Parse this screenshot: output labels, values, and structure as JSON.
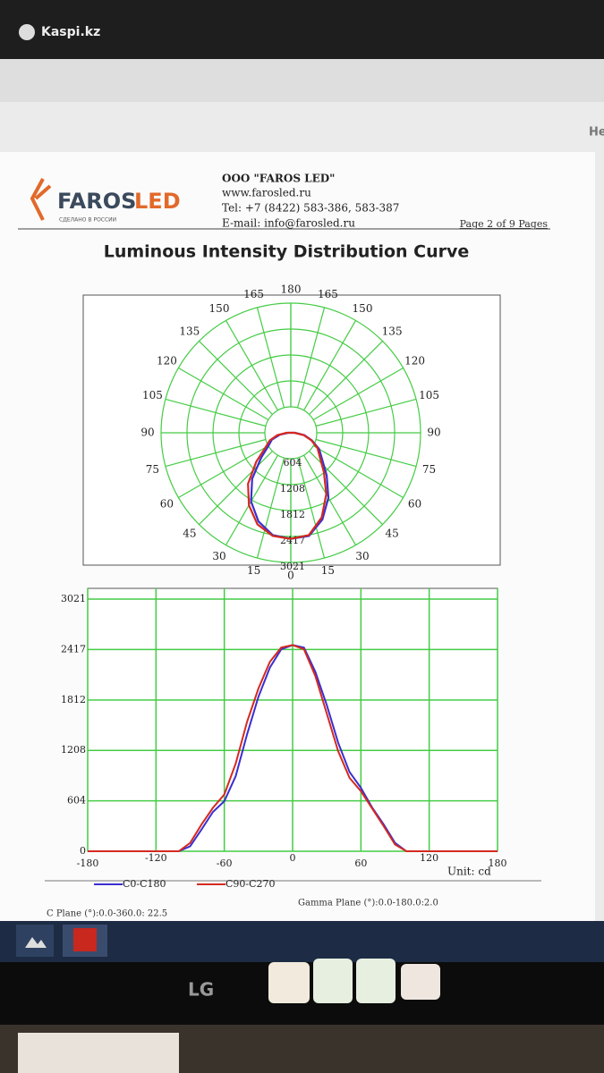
{
  "watermark": "Kaspi.kz",
  "side_text": "He",
  "header": {
    "logo_main": "FAROS",
    "logo_accent": "LED",
    "made_in": "СДЕЛАНО В РОССИИ",
    "company": "OOO \"FAROS LED\"",
    "web": "www.farosled.ru",
    "tel": "Tel: +7 (8422) 583-386, 583-387",
    "email": "E-mail: info@farosled.ru",
    "page": "Page 2 of 9 Pages"
  },
  "title": "Luminous Intensity Distribution Curve",
  "chart_data": [
    {
      "type": "polar",
      "x": [
        -180,
        -170,
        -160,
        -150,
        -140,
        -130,
        -120,
        -110,
        -100,
        -90,
        -80,
        -70,
        -60,
        -50,
        -40,
        -30,
        -20,
        -10,
        0,
        10,
        20,
        30,
        40,
        50,
        60,
        70,
        80,
        90,
        100,
        110,
        120,
        130,
        140,
        150,
        160,
        170,
        180
      ],
      "series": [
        {
          "name": "C0-C180",
          "color": "#3a2fd0",
          "values": [
            0,
            0,
            0,
            0,
            0,
            0,
            0,
            0,
            0,
            60,
            260,
            470,
            600,
            900,
            1400,
            1850,
            2200,
            2420,
            2470,
            2440,
            2150,
            1750,
            1300,
            950,
            760,
            520,
            320,
            100,
            0,
            0,
            0,
            0,
            0,
            0,
            0,
            0,
            0
          ]
        },
        {
          "name": "C90-C270",
          "color": "#d42a20",
          "values": [
            0,
            0,
            0,
            0,
            0,
            0,
            0,
            0,
            0,
            100,
            320,
            520,
            680,
            1050,
            1550,
            1950,
            2270,
            2440,
            2470,
            2420,
            2100,
            1650,
            1200,
            880,
            720,
            510,
            300,
            80,
            0,
            0,
            0,
            0,
            0,
            0,
            0,
            0,
            0
          ]
        }
      ],
      "rlim": [
        0,
        3021
      ],
      "rticks": [
        604,
        1208,
        1812,
        2417,
        3021
      ],
      "angle_ticks": [
        0,
        15,
        30,
        45,
        60,
        75,
        90,
        105,
        120,
        135,
        150,
        165,
        180
      ],
      "grid": true,
      "grid_color": "#44cc44"
    },
    {
      "type": "line",
      "x": [
        -180,
        -170,
        -160,
        -150,
        -140,
        -130,
        -120,
        -110,
        -100,
        -90,
        -80,
        -70,
        -60,
        -50,
        -40,
        -30,
        -20,
        -10,
        0,
        10,
        20,
        30,
        40,
        50,
        60,
        70,
        80,
        90,
        100,
        110,
        120,
        130,
        140,
        150,
        160,
        170,
        180
      ],
      "series": [
        {
          "name": "C0-C180",
          "color": "#3a2fd0",
          "values": [
            0,
            0,
            0,
            0,
            0,
            0,
            0,
            0,
            0,
            60,
            260,
            470,
            600,
            900,
            1400,
            1850,
            2200,
            2420,
            2470,
            2440,
            2150,
            1750,
            1300,
            950,
            760,
            520,
            320,
            100,
            0,
            0,
            0,
            0,
            0,
            0,
            0,
            0,
            0
          ]
        },
        {
          "name": "C90-C270",
          "color": "#d42a20",
          "values": [
            0,
            0,
            0,
            0,
            0,
            0,
            0,
            0,
            0,
            100,
            320,
            520,
            680,
            1050,
            1550,
            1950,
            2270,
            2440,
            2470,
            2420,
            2100,
            1650,
            1200,
            880,
            720,
            510,
            300,
            80,
            0,
            0,
            0,
            0,
            0,
            0,
            0,
            0,
            0
          ]
        }
      ],
      "xlim": [
        -180,
        180
      ],
      "xticks": [
        -180,
        -120,
        -60,
        0,
        60,
        120,
        180
      ],
      "ylim": [
        0,
        3021
      ],
      "yticks": [
        0,
        604,
        1208,
        1812,
        2417,
        3021
      ],
      "grid": true,
      "grid_color": "#44cc44",
      "unit_label": "Unit: cd"
    }
  ],
  "footer": {
    "c_plane": "C Plane (°):0.0-360.0: 22.5",
    "gamma_plane": "Gamma Plane (°):0.0-180.0:2.0"
  },
  "monitor_brand": "LG"
}
